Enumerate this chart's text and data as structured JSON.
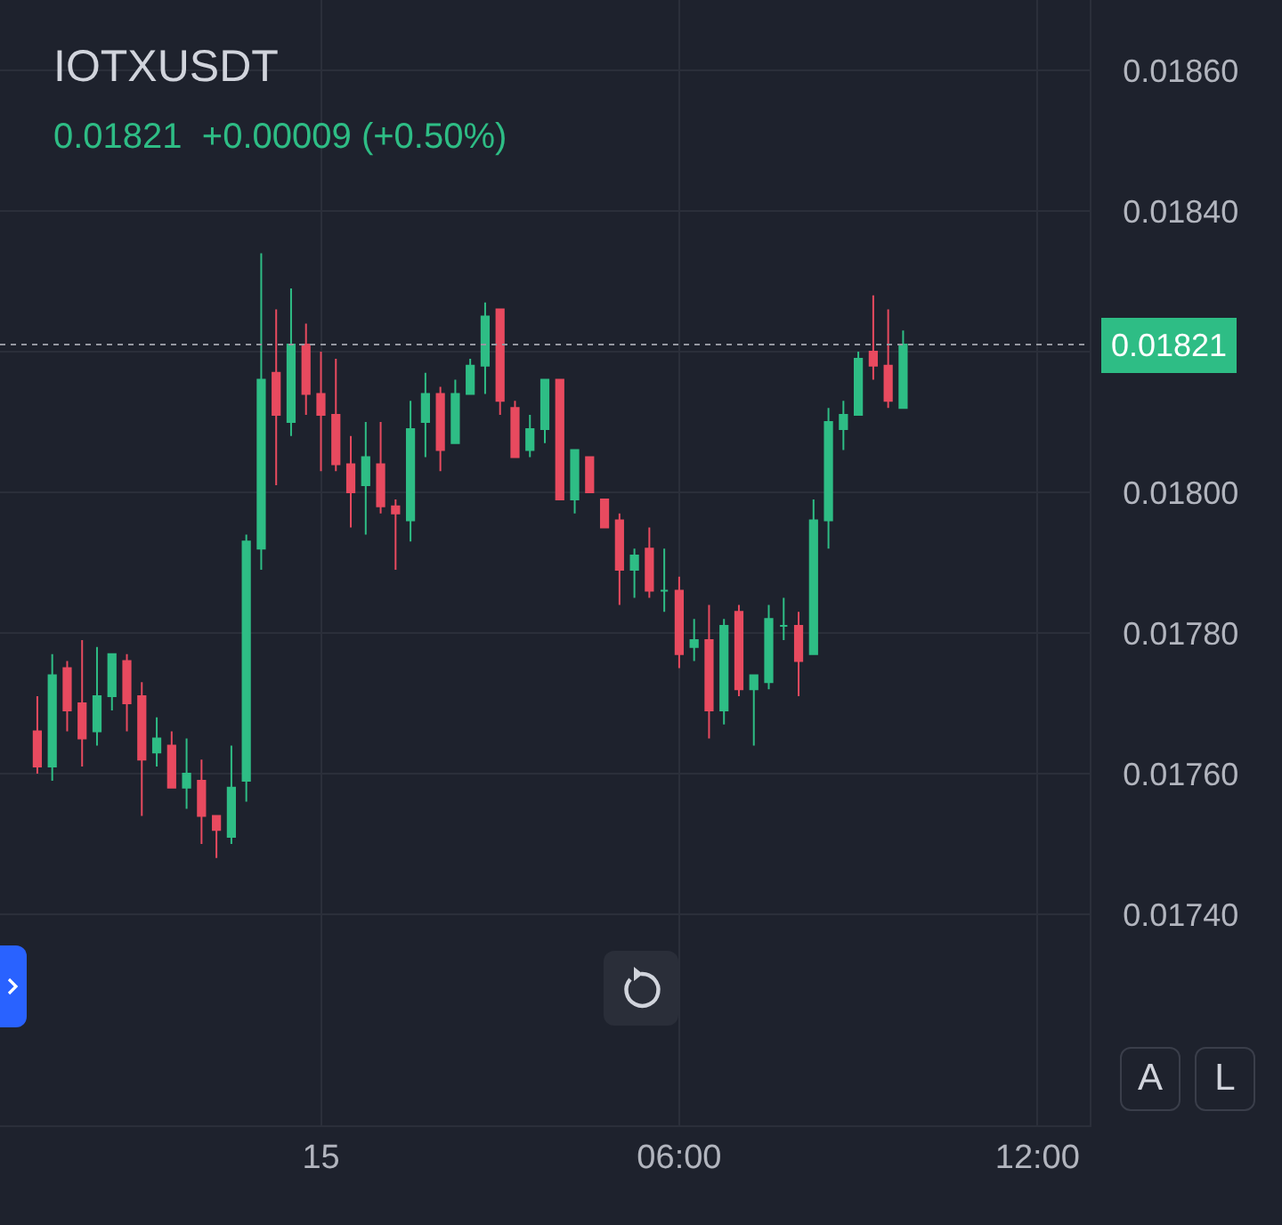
{
  "chart_data": {
    "type": "candlestick",
    "title": "IOTXUSDT",
    "subtitle": "0.01821  +0.00009 (+0.50%)",
    "categories": [
      null,
      null,
      null,
      null,
      null,
      null,
      null,
      null,
      null,
      null,
      null,
      null,
      null,
      null,
      null,
      null,
      null,
      null,
      null,
      "15",
      null,
      null,
      null,
      null,
      null,
      null,
      null,
      null,
      null,
      null,
      null,
      null,
      null,
      null,
      null,
      null,
      null,
      null,
      null,
      null,
      null,
      null,
      null,
      "06:00",
      null,
      null,
      null,
      null,
      null,
      null,
      null,
      null,
      null,
      null,
      null,
      null,
      null,
      null,
      null,
      null,
      null,
      null,
      null,
      null,
      null,
      null,
      null,
      "12:00",
      null,
      null,
      null
    ],
    "ohlc": [
      [
        0.01766,
        0.01771,
        0.0176,
        0.01761
      ],
      [
        0.01761,
        0.01777,
        0.01759,
        0.01774
      ],
      [
        0.01775,
        0.01776,
        0.01766,
        0.01769
      ],
      [
        0.0177,
        0.01779,
        0.01761,
        0.01765
      ],
      [
        0.01766,
        0.01778,
        0.01764,
        0.01771
      ],
      [
        0.01771,
        0.01777,
        0.01769,
        0.01777
      ],
      [
        0.01776,
        0.01777,
        0.01766,
        0.0177
      ],
      [
        0.01771,
        0.01773,
        0.01754,
        0.01762
      ],
      [
        0.01763,
        0.01768,
        0.01761,
        0.01765
      ],
      [
        0.01764,
        0.01766,
        0.01758,
        0.01758
      ],
      [
        0.01758,
        0.01765,
        0.01755,
        0.0176
      ],
      [
        0.01759,
        0.01762,
        0.0175,
        0.01754
      ],
      [
        0.01754,
        0.01754,
        0.01748,
        0.01752
      ],
      [
        0.01751,
        0.01764,
        0.0175,
        0.01758
      ],
      [
        0.01759,
        0.01794,
        0.01756,
        0.01793
      ],
      [
        0.01792,
        0.01834,
        0.01789,
        0.01816
      ],
      [
        0.01817,
        0.01826,
        0.01801,
        0.01811
      ],
      [
        0.0181,
        0.01829,
        0.01808,
        0.01821
      ],
      [
        0.01821,
        0.01824,
        0.01811,
        0.01814
      ],
      [
        0.01814,
        0.0182,
        0.01803,
        0.01811
      ],
      [
        0.01811,
        0.01819,
        0.01803,
        0.01804
      ],
      [
        0.01804,
        0.01808,
        0.01795,
        0.018
      ],
      [
        0.01801,
        0.0181,
        0.01794,
        0.01805
      ],
      [
        0.01804,
        0.0181,
        0.01797,
        0.01798
      ],
      [
        0.01798,
        0.01799,
        0.01789,
        0.01797
      ],
      [
        0.01796,
        0.01813,
        0.01793,
        0.01809
      ],
      [
        0.0181,
        0.01817,
        0.01805,
        0.01814
      ],
      [
        0.01814,
        0.01815,
        0.01803,
        0.01806
      ],
      [
        0.01807,
        0.01816,
        0.01807,
        0.01814
      ],
      [
        0.01814,
        0.01819,
        0.01814,
        0.01818
      ],
      [
        0.01818,
        0.01827,
        0.01814,
        0.01825
      ],
      [
        0.01826,
        0.01826,
        0.01811,
        0.01813
      ],
      [
        0.01812,
        0.01813,
        0.01805,
        0.01805
      ],
      [
        0.01806,
        0.01811,
        0.01805,
        0.01809
      ],
      [
        0.01809,
        0.01816,
        0.01807,
        0.01816
      ],
      [
        0.01816,
        0.01816,
        0.01799,
        0.01799
      ],
      [
        0.01799,
        0.01806,
        0.01797,
        0.01806
      ],
      [
        0.01805,
        0.01805,
        0.018,
        0.018
      ],
      [
        0.01799,
        0.01799,
        0.01795,
        0.01795
      ],
      [
        0.01796,
        0.01797,
        0.01784,
        0.01789
      ],
      [
        0.01789,
        0.01792,
        0.01785,
        0.01791
      ],
      [
        0.01792,
        0.01795,
        0.01785,
        0.01786
      ],
      [
        0.01786,
        0.01792,
        0.01783,
        0.01786
      ],
      [
        0.01786,
        0.01788,
        0.01775,
        0.01777
      ],
      [
        0.01778,
        0.01782,
        0.01776,
        0.01779
      ],
      [
        0.01779,
        0.01784,
        0.01765,
        0.01769
      ],
      [
        0.01769,
        0.01782,
        0.01767,
        0.01781
      ],
      [
        0.01783,
        0.01784,
        0.01771,
        0.01772
      ],
      [
        0.01772,
        0.01774,
        0.01764,
        0.01774
      ],
      [
        0.01773,
        0.01784,
        0.01772,
        0.01782
      ],
      [
        0.01781,
        0.01785,
        0.01779,
        0.01781
      ],
      [
        0.01781,
        0.01783,
        0.01771,
        0.01776
      ],
      [
        0.01777,
        0.01799,
        0.01777,
        0.01796
      ],
      [
        0.01796,
        0.01812,
        0.01792,
        0.0181
      ],
      [
        0.01809,
        0.01813,
        0.01806,
        0.01811
      ],
      [
        0.01811,
        0.0182,
        0.01811,
        0.01819
      ],
      [
        0.0182,
        0.01828,
        0.01816,
        0.01818
      ],
      [
        0.01818,
        0.01826,
        0.01812,
        0.01813
      ],
      [
        0.01812,
        0.01823,
        0.01812,
        0.01821
      ],
      null,
      null,
      null,
      null,
      null,
      null,
      null,
      null,
      null,
      null,
      null,
      null
    ],
    "colors": [
      "#e84a5f",
      "#2ebd85",
      "#e84a5f",
      "#e84a5f",
      "#2ebd85",
      "#2ebd85",
      "#e84a5f",
      "#e84a5f",
      "#2ebd85",
      "#e84a5f",
      "#2ebd85",
      "#e84a5f",
      "#e84a5f",
      "#2ebd85",
      "#2ebd85",
      "#2ebd85",
      "#e84a5f",
      "#2ebd85",
      "#e84a5f",
      "#e84a5f",
      "#e84a5f",
      "#e84a5f",
      "#2ebd85",
      "#e84a5f",
      "#e84a5f",
      "#2ebd85",
      "#2ebd85",
      "#e84a5f",
      "#2ebd85",
      "#2ebd85",
      "#2ebd85",
      "#e84a5f",
      "#e84a5f",
      "#2ebd85",
      "#2ebd85",
      "#e84a5f",
      "#2ebd85",
      "#e84a5f",
      "#e84a5f",
      "#e84a5f",
      "#2ebd85",
      "#e84a5f",
      "#2ebd85",
      "#e84a5f",
      "#2ebd85",
      "#e84a5f",
      "#2ebd85",
      "#e84a5f",
      "#2ebd85",
      "#2ebd85",
      "#2ebd85",
      "#e84a5f",
      "#2ebd85",
      "#2ebd85",
      "#2ebd85",
      "#2ebd85",
      "#e84a5f",
      "#e84a5f",
      "#2ebd85",
      null,
      null,
      null,
      null,
      null,
      null,
      null,
      null,
      null,
      null,
      null,
      null
    ],
    "ylim": [
      0.0171,
      0.0187
    ],
    "yticks": [
      {
        "value": 0.0174,
        "label": "0.01740"
      },
      {
        "value": 0.0176,
        "label": "0.01760"
      },
      {
        "value": 0.0178,
        "label": "0.01780"
      },
      {
        "value": 0.018,
        "label": "0.01800"
      },
      {
        "value": 0.0182,
        "label": null
      },
      {
        "value": 0.0184,
        "label": "0.01840"
      },
      {
        "value": 0.0186,
        "label": "0.01860"
      }
    ],
    "grid": true,
    "ref_lines": [
      {
        "axis": "y",
        "value": 0.01821,
        "label": "0.01821",
        "color": "#9598a1",
        "line_style": "dotted"
      }
    ],
    "annotations": [
      "A",
      "L"
    ]
  }
}
